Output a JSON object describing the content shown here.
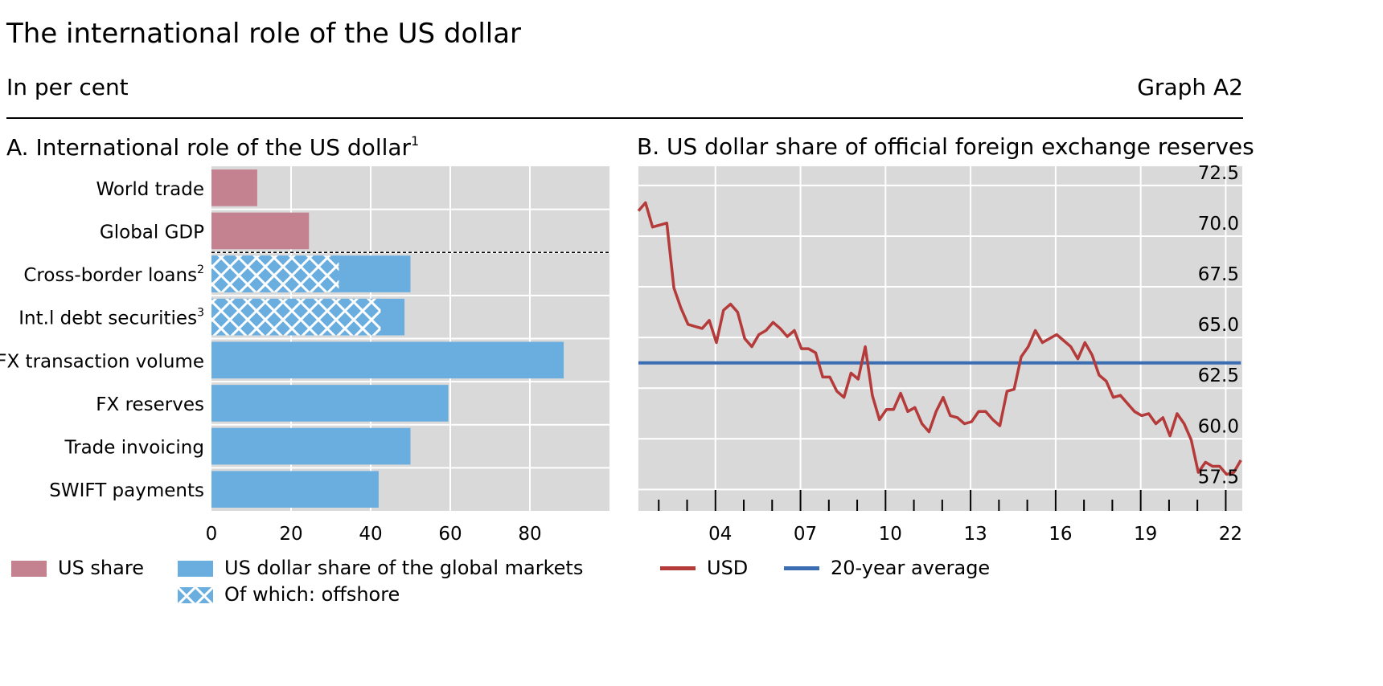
{
  "header": {
    "title": "The international role of the US dollar",
    "subtitle": "In per cent",
    "graph_number": "Graph A2"
  },
  "panel_a": {
    "title": "A. International role of the US dollar",
    "title_sup": "1",
    "legend": {
      "us_share": "US share",
      "usd_share_global": "US dollar share of the global markets",
      "offshore": "Of which: offshore"
    }
  },
  "panel_b": {
    "title": "B. US dollar share of official foreign exchange reserves",
    "legend": {
      "usd": "USD",
      "avg": "20-year average"
    }
  },
  "colors": {
    "us_share": "#c48291",
    "global": "#6aaee0",
    "hatch_line": "#ffffff",
    "usd_line": "#b53a3a",
    "avg_line": "#3b6db3",
    "plot_bg": "#d9d9d9",
    "grid": "#ffffff"
  },
  "chart_data": [
    {
      "type": "bar",
      "orientation": "horizontal",
      "categories": [
        "World trade",
        "Global GDP",
        "Cross-border loans",
        "Int.l debt securities",
        "FX transaction volume",
        "FX reserves",
        "Trade invoicing",
        "SWIFT payments"
      ],
      "category_superscripts": [
        "",
        "",
        "2",
        "3",
        "",
        "",
        "",
        ""
      ],
      "series": [
        {
          "name": "US share",
          "values": [
            11.5,
            24.5,
            null,
            null,
            null,
            null,
            null,
            null
          ]
        },
        {
          "name": "US dollar share of the global markets",
          "values": [
            null,
            null,
            50,
            48.5,
            88.5,
            59.5,
            50,
            42
          ]
        },
        {
          "name": "Of which: offshore",
          "values": [
            null,
            null,
            32,
            42.5,
            null,
            null,
            null,
            null
          ]
        }
      ],
      "xlim": [
        0,
        100
      ],
      "xticks": [
        0,
        20,
        40,
        60,
        80
      ],
      "xtick_labels": [
        "0",
        "20",
        "40",
        "60",
        "80"
      ],
      "grid": true,
      "separator_after_category": "Global GDP"
    },
    {
      "type": "line",
      "x_start": 2001,
      "x_step": 0.25,
      "xticks": [
        2004,
        2007,
        2010,
        2013,
        2016,
        2019,
        2022
      ],
      "xtick_labels": [
        "04",
        "07",
        "10",
        "13",
        "16",
        "19",
        "22"
      ],
      "minor_ticks": [
        2002,
        2003,
        2005,
        2006,
        2008,
        2009,
        2011,
        2012,
        2014,
        2015,
        2017,
        2018,
        2020,
        2021
      ],
      "ylim": [
        57,
        74
      ],
      "yticks": [
        57.5,
        60.0,
        62.5,
        65.0,
        67.5,
        70.0,
        72.5
      ],
      "ytick_labels": [
        "57.5",
        "60.0",
        "62.5",
        "65.0",
        "67.5",
        "70.0",
        "72.5"
      ],
      "y_axis_side": "right",
      "grid": true,
      "series": [
        {
          "name": "USD",
          "values": [
            71.8,
            72.2,
            71.0,
            71.1,
            71.2,
            68.0,
            67.0,
            66.2,
            66.1,
            66.0,
            66.4,
            65.3,
            66.9,
            67.2,
            66.8,
            65.5,
            65.1,
            65.7,
            65.9,
            66.3,
            66.0,
            65.6,
            65.9,
            65.0,
            65.0,
            64.8,
            63.6,
            63.6,
            62.9,
            62.6,
            63.8,
            63.5,
            65.1,
            62.7,
            61.5,
            62.0,
            62.0,
            62.8,
            61.9,
            62.1,
            61.3,
            60.9,
            61.9,
            62.6,
            61.7,
            61.6,
            61.3,
            61.4,
            61.9,
            61.9,
            61.5,
            61.2,
            62.9,
            63.0,
            64.6,
            65.1,
            65.9,
            65.3,
            65.5,
            65.7,
            65.4,
            65.1,
            64.5,
            65.3,
            64.7,
            63.7,
            63.4,
            62.6,
            62.7,
            62.3,
            61.9,
            61.7,
            61.8,
            61.3,
            61.6,
            60.7,
            61.8,
            61.3,
            60.5,
            58.9,
            59.4,
            59.2,
            59.2,
            58.8,
            58.9,
            59.5
          ]
        },
        {
          "name": "20-year average",
          "value": 64.3,
          "x_range": [
            2001,
            2022.25
          ]
        }
      ]
    }
  ]
}
